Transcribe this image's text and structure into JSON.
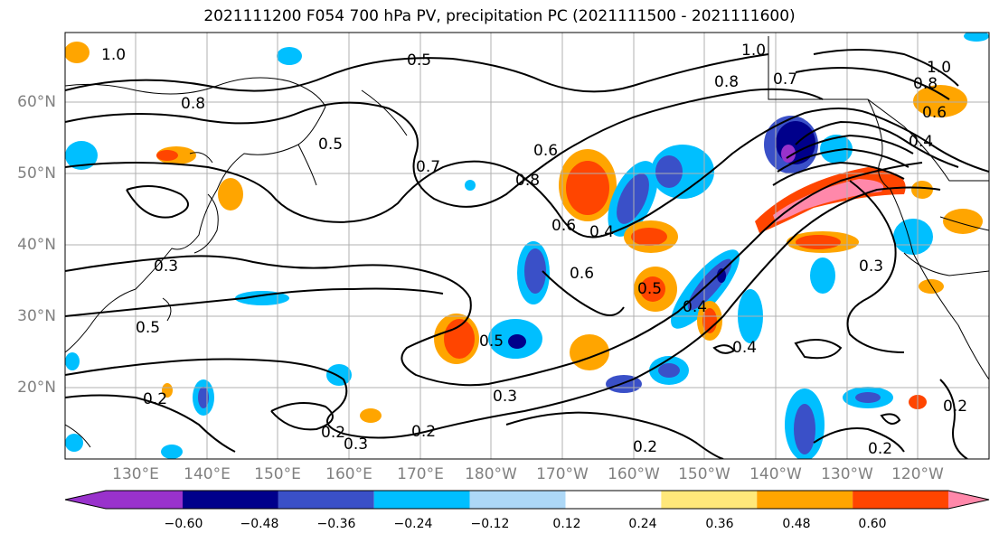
{
  "title": "2021111200 F054 700 hPa PV, precipitation PC (2021111500 - 2021111600)",
  "lat_labels": [
    "60°N",
    "50°N",
    "40°N",
    "30°N",
    "20°N"
  ],
  "lon_labels": [
    "130°E",
    "140°E",
    "150°E",
    "160°E",
    "170°E",
    "180°W",
    "170°W",
    "160°W",
    "150°W",
    "140°W",
    "130°W",
    "120°W"
  ],
  "contour_labels": [
    "1.0",
    "0.5",
    "0.8",
    "0.5",
    "0.7",
    "0.6",
    "0.8",
    "0.6",
    "0.4",
    "0.5",
    "0.4",
    "0.6",
    "0.5",
    "0.4",
    "0.3",
    "0.5",
    "0.3",
    "0.2",
    "0.2",
    "0.3",
    "0.2",
    "0.2",
    "0.2",
    "1.0",
    "0.7",
    "0.8",
    "1.0",
    "0.8",
    "0.4",
    "0.3",
    "0.2",
    "0.6"
  ],
  "colorbar": {
    "colors": [
      "#9932CC",
      "#00008B",
      "#3A50C8",
      "#00BFFF",
      "#ADD8F7",
      "#FFFFFF",
      "#FFE87A",
      "#FFA500",
      "#FF4500",
      "#B22222",
      "#FF88AA"
    ],
    "ticks": [
      "−0.60",
      "−0.48",
      "−0.36",
      "−0.24",
      "−0.12",
      "0.12",
      "0.24",
      "0.36",
      "0.48",
      "0.60"
    ]
  }
}
